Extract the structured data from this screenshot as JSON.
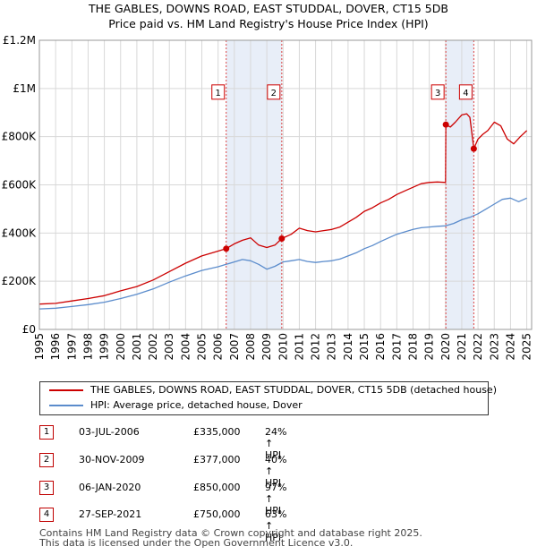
{
  "chart_data": {
    "type": "line",
    "title": "THE GABLES, DOWNS ROAD, EAST STUDDAL, DOVER, CT15 5DB",
    "subtitle": "Price paid vs. HM Land Registry's House Price Index (HPI)",
    "xlim": [
      1995,
      2025.3
    ],
    "ylim": [
      0,
      1200000
    ],
    "x_ticks": [
      1995,
      1996,
      1997,
      1998,
      1999,
      2000,
      2001,
      2002,
      2003,
      2004,
      2005,
      2006,
      2007,
      2008,
      2009,
      2010,
      2011,
      2012,
      2013,
      2014,
      2015,
      2016,
      2017,
      2018,
      2019,
      2020,
      2021,
      2022,
      2023,
      2024,
      2025
    ],
    "y_ticks": [
      {
        "value": 0,
        "label": "£0"
      },
      {
        "value": 200000,
        "label": "£200K"
      },
      {
        "value": 400000,
        "label": "£400K"
      },
      {
        "value": 600000,
        "label": "£600K"
      },
      {
        "value": 800000,
        "label": "£800K"
      },
      {
        "value": 1000000,
        "label": "£1M"
      },
      {
        "value": 1200000,
        "label": "£1.2M"
      }
    ],
    "shaded_periods": [
      [
        2006.5,
        2009.92
      ],
      [
        2020.02,
        2021.74
      ]
    ],
    "series": [
      {
        "name": "THE GABLES, DOWNS ROAD, EAST STUDDAL, DOVER, CT15 5DB (detached house)",
        "color": "#cc0000",
        "x": [
          1995,
          1996,
          1997,
          1998,
          1999,
          2000,
          2001,
          2002,
          2003,
          2004,
          2005,
          2006.0,
          2006.5,
          2007,
          2007.5,
          2008,
          2008.5,
          2009,
          2009.5,
          2009.92,
          2010.5,
          2011,
          2011.5,
          2012,
          2012.5,
          2013,
          2013.5,
          2014,
          2014.5,
          2015,
          2015.5,
          2016,
          2016.5,
          2017,
          2017.5,
          2018,
          2018.5,
          2019,
          2019.5,
          2020.0,
          2020.02,
          2020.3,
          2020.6,
          2021.0,
          2021.3,
          2021.5,
          2021.74,
          2022.0,
          2022.3,
          2022.6,
          2023.0,
          2023.4,
          2023.8,
          2024.2,
          2024.6,
          2025.0
        ],
        "values": [
          105000,
          108000,
          118000,
          128000,
          140000,
          160000,
          178000,
          205000,
          240000,
          275000,
          305000,
          325000,
          335000,
          355000,
          370000,
          380000,
          350000,
          340000,
          350000,
          377000,
          395000,
          420000,
          410000,
          405000,
          410000,
          415000,
          425000,
          445000,
          465000,
          490000,
          505000,
          525000,
          540000,
          560000,
          575000,
          590000,
          605000,
          610000,
          612000,
          610000,
          850000,
          840000,
          860000,
          890000,
          895000,
          880000,
          750000,
          790000,
          810000,
          825000,
          860000,
          845000,
          790000,
          770000,
          800000,
          825000
        ]
      },
      {
        "name": "HPI: Average price, detached house, Dover",
        "color": "#5b8ccc",
        "x": [
          1995,
          1996,
          1997,
          1998,
          1999,
          2000,
          2001,
          2002,
          2003,
          2004,
          2005,
          2006.0,
          2006.5,
          2007,
          2007.5,
          2008,
          2008.5,
          2009,
          2009.5,
          2010,
          2010.5,
          2011,
          2011.5,
          2012,
          2012.5,
          2013,
          2013.5,
          2014,
          2014.5,
          2015,
          2015.5,
          2016,
          2016.5,
          2017,
          2017.5,
          2018,
          2018.5,
          2019,
          2019.5,
          2020,
          2020.5,
          2021,
          2021.5,
          2022,
          2022.5,
          2023,
          2023.5,
          2024,
          2024.5,
          2025
        ],
        "values": [
          85000,
          88000,
          95000,
          103000,
          113000,
          128000,
          146000,
          168000,
          196000,
          222000,
          245000,
          260000,
          270000,
          280000,
          290000,
          285000,
          270000,
          250000,
          262000,
          280000,
          285000,
          290000,
          282000,
          278000,
          282000,
          285000,
          292000,
          305000,
          318000,
          335000,
          348000,
          365000,
          380000,
          395000,
          405000,
          415000,
          422000,
          425000,
          428000,
          430000,
          440000,
          455000,
          465000,
          480000,
          500000,
          520000,
          540000,
          545000,
          530000,
          545000
        ]
      }
    ],
    "markers": [
      {
        "label": "1",
        "x": 2006.5,
        "y": 335000
      },
      {
        "label": "2",
        "x": 2009.92,
        "y": 377000
      },
      {
        "label": "3",
        "x": 2020.02,
        "y": 850000
      },
      {
        "label": "4",
        "x": 2021.74,
        "y": 750000
      }
    ]
  },
  "legend": {
    "property_label": "THE GABLES, DOWNS ROAD, EAST STUDDAL, DOVER, CT15 5DB (detached house)",
    "hpi_label": "HPI: Average price, detached house, Dover"
  },
  "sales": [
    {
      "num": "1",
      "date": "03-JUL-2006",
      "price": "£335,000",
      "hpi": "24% ↑ HPI"
    },
    {
      "num": "2",
      "date": "30-NOV-2009",
      "price": "£377,000",
      "hpi": "40% ↑ HPI"
    },
    {
      "num": "3",
      "date": "06-JAN-2020",
      "price": "£850,000",
      "hpi": "97% ↑ HPI"
    },
    {
      "num": "4",
      "date": "27-SEP-2021",
      "price": "£750,000",
      "hpi": "63% ↑ HPI"
    }
  ],
  "footer": {
    "line1": "Contains HM Land Registry data © Crown copyright and database right 2025.",
    "line2": "This data is licensed under the Open Government Licence v3.0."
  }
}
